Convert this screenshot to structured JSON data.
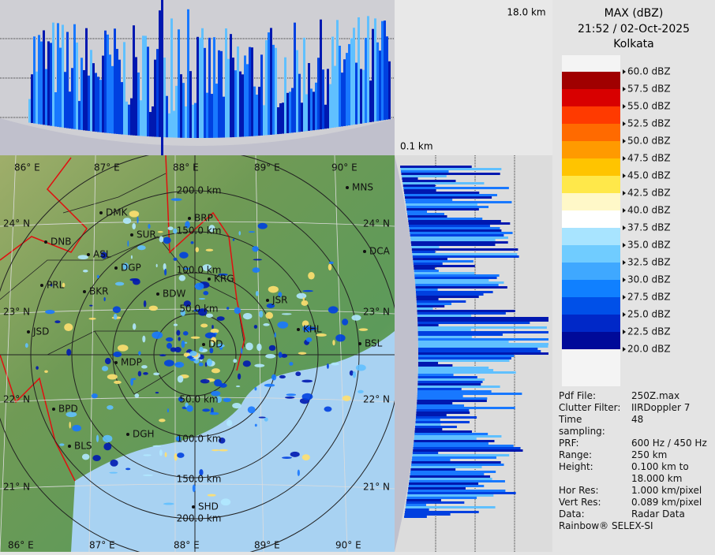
{
  "header": {
    "title": "MAX (dBZ)",
    "time": "21:52 / 02-Oct-2025",
    "station": "Kolkata"
  },
  "heights": {
    "top": "18.0 km",
    "bottom": "0.1 km"
  },
  "legend": {
    "labels": [
      "60.0 dBZ",
      "57.5 dBZ",
      "55.0 dBZ",
      "52.5 dBZ",
      "50.0 dBZ",
      "47.5 dBZ",
      "45.0 dBZ",
      "42.5 dBZ",
      "40.0 dBZ",
      "37.5 dBZ",
      "35.0 dBZ",
      "32.5 dBZ",
      "30.0 dBZ",
      "27.5 dBZ",
      "25.0 dBZ",
      "22.5 dBZ",
      "20.0 dBZ"
    ],
    "colors": [
      "#a00000",
      "#d80000",
      "#ff3a00",
      "#ff6a00",
      "#ff9a00",
      "#ffc400",
      "#ffe84a",
      "#fff8c8",
      "#ffffff",
      "#a8e4ff",
      "#70ccff",
      "#3fa8ff",
      "#1080ff",
      "#0050e8",
      "#0028c8",
      "#000a99"
    ]
  },
  "map": {
    "lon_top": [
      "86° E",
      "87° E",
      "88° E",
      "89° E",
      "90° E"
    ],
    "lon_bottom": [
      "86° E",
      "87° E",
      "88° E",
      "89° E",
      "90° E"
    ],
    "lat_left": [
      "24° N",
      "23° N",
      "22° N",
      "21° N"
    ],
    "lat_right": [
      "24° N",
      "23° N",
      "22° N",
      "21° N"
    ],
    "cities": [
      "MNS",
      "DMK",
      "BRP",
      "DNB",
      "SUR",
      "DCA",
      "ASL",
      "DGP",
      "KRG",
      "PRL",
      "BKR",
      "BDW",
      "JSR",
      "KHL",
      "JSD",
      "DD",
      "BSL",
      "MDP",
      "BPD",
      "DGH",
      "BLS",
      "SHD"
    ],
    "rings": [
      "200.0 km",
      "150.0 km",
      "100.0 km",
      "50.0 km",
      "50.0 km",
      "100.0 km",
      "150.0 km",
      "200.0 km"
    ]
  },
  "info": {
    "rows": [
      {
        "label": "Pdf File:",
        "value": "250Z.max"
      },
      {
        "label": "Clutter Filter:",
        "value": "IIRDoppler 7"
      },
      {
        "label": "Time sampling:",
        "value": "48"
      },
      {
        "label": "PRF:",
        "value": "600 Hz / 450 Hz"
      },
      {
        "label": "Range:",
        "value": "250 km"
      },
      {
        "label": "Height:",
        "value": "0.100 km to 18.000 km"
      },
      {
        "label": "Hor Res:",
        "value": "1.000 km/pixel"
      },
      {
        "label": "Vert Res:",
        "value": "0.089 km/pixel"
      },
      {
        "label": "Data:",
        "value": "Radar Data"
      }
    ],
    "footer": "Rainbow® SELEX-SI"
  }
}
